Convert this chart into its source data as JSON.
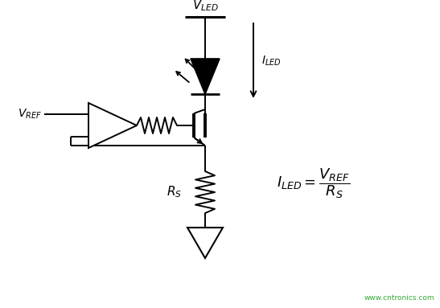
{
  "bg_color": "#ffffff",
  "line_color": "#000000",
  "watermark_color": "#33aa33",
  "watermark_text": "www.cntronics.com",
  "figsize": [
    5.47,
    3.83
  ],
  "dpi": 100
}
